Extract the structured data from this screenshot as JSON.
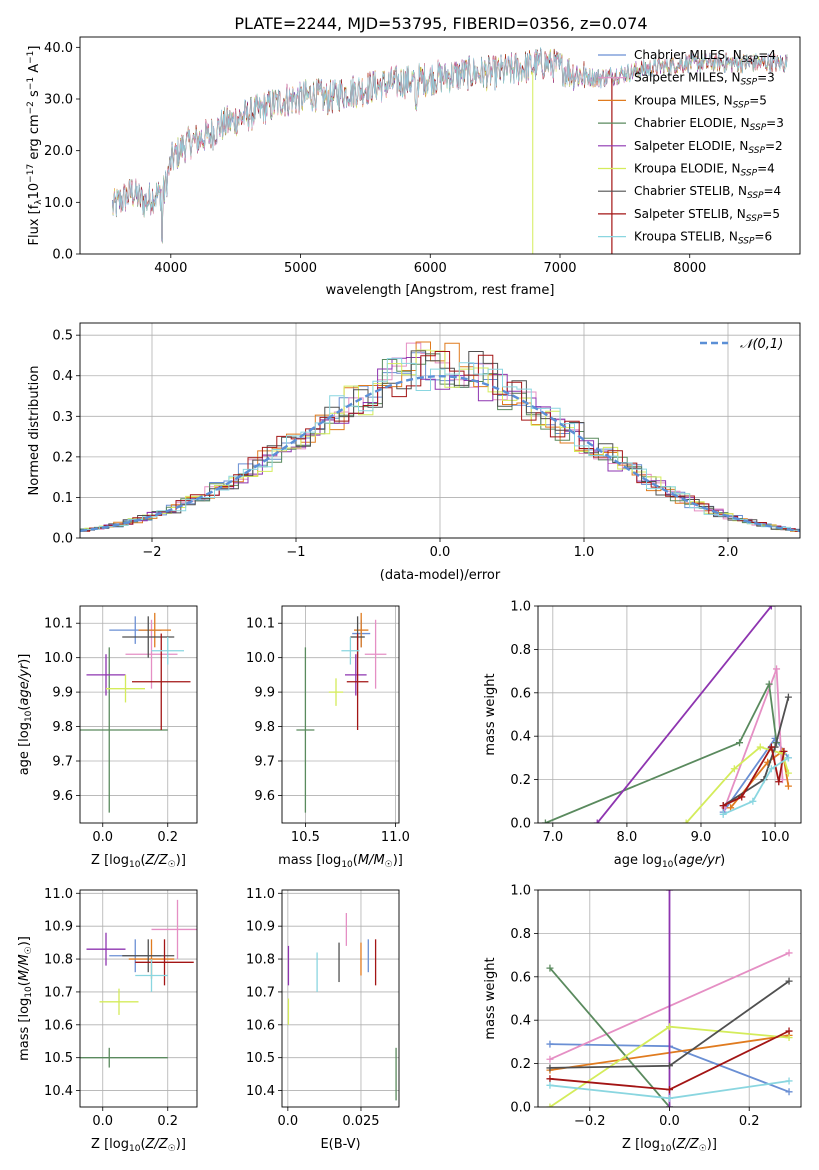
{
  "figure": {
    "title": "PLATE=2244, MJD=53795, FIBERID=0356, z=0.074"
  },
  "series_colors": [
    "#6a8fd4",
    "#e58fc4",
    "#e07b1f",
    "#5a8a5e",
    "#8e35b0",
    "#d4ec5b",
    "#505050",
    "#a31515",
    "#8ad6e0"
  ],
  "chart_data": [
    {
      "id": "spectrum",
      "type": "line",
      "xlabel": "wavelength [Angstrom, rest frame]",
      "ylabel": "Flux [f_λ 10^-17 erg cm^-2 s^-1 A^-1]",
      "xlim": [
        3300,
        8850
      ],
      "ylim": [
        0,
        42
      ],
      "xticks": [
        4000,
        5000,
        6000,
        7000,
        8000
      ],
      "yticks": [
        0,
        10,
        20,
        30,
        40
      ],
      "grid": false,
      "legend_position": "top-right",
      "legend": [
        {
          "base": "Chabrier MILES, N",
          "sub": "SSP",
          "tail": "=4"
        },
        {
          "base": "Salpeter MILES, N",
          "sub": "SSP",
          "tail": "=3"
        },
        {
          "base": "Kroupa MILES, N",
          "sub": "SSP",
          "tail": "=5"
        },
        {
          "base": "Chabrier ELODIE, N",
          "sub": "SSP",
          "tail": "=3"
        },
        {
          "base": "Salpeter ELODIE, N",
          "sub": "SSP",
          "tail": "=2"
        },
        {
          "base": "Kroupa ELODIE, N",
          "sub": "SSP",
          "tail": "=4"
        },
        {
          "base": "Chabrier STELIB, N",
          "sub": "SSP",
          "tail": "=4"
        },
        {
          "base": "Salpeter STELIB, N",
          "sub": "SSP",
          "tail": "=5"
        },
        {
          "base": "Kroupa STELIB, N",
          "sub": "SSP",
          "tail": "=6"
        }
      ],
      "continuum": {
        "x": [
          3550,
          3650,
          3700,
          3800,
          3850,
          3950,
          4000,
          4100,
          4200,
          4300,
          4400,
          4500,
          4600,
          4700,
          4800,
          4900,
          5000,
          5100,
          5200,
          5300,
          5500,
          5700,
          6000,
          6300,
          6500,
          6700,
          6900,
          7000,
          7100,
          7300,
          7500,
          7700,
          8000,
          8300,
          8500,
          8700
        ],
        "y": [
          9,
          11,
          12,
          10,
          11,
          12,
          18,
          21,
          22,
          23,
          25,
          26,
          27,
          28,
          29,
          30,
          30,
          31,
          30,
          31,
          32,
          33,
          34,
          35,
          35,
          36,
          37,
          36,
          35,
          34,
          35,
          36,
          37,
          37,
          37,
          37
        ]
      },
      "features": [
        {
          "x": 3933,
          "y": 2
        },
        {
          "x": 5890,
          "y": 27
        },
        {
          "x": 6790,
          "y": 0
        },
        {
          "x": 7400,
          "y": 0
        }
      ]
    },
    {
      "id": "residual_hist",
      "type": "bar",
      "xlabel": "(data-model)/error",
      "ylabel": "Normed distribution",
      "xlim": [
        -2.5,
        2.5
      ],
      "ylim": [
        0,
        0.53
      ],
      "xticks": [
        -2,
        -1,
        0,
        1,
        2
      ],
      "yticks": [
        0.0,
        0.1,
        0.2,
        0.3,
        0.4,
        0.5
      ],
      "grid": true,
      "legend_position": "top-right",
      "legend": [
        {
          "label": "𝒩(0,1)"
        }
      ]
    },
    {
      "id": "z_age",
      "type": "scatter",
      "xlabel": "Z [log10(Z/Z☉)]",
      "ylabel": "age [log10(age/yr)]",
      "xlim": [
        -0.07,
        0.29
      ],
      "ylim": [
        9.52,
        10.15
      ],
      "xticks": [
        0.0,
        0.2
      ],
      "yticks": [
        9.6,
        9.7,
        9.8,
        9.9,
        10.0,
        10.1
      ],
      "grid": true,
      "points": [
        {
          "x": 0.1,
          "y": 10.08,
          "xerr": 0.08,
          "yerr": 0.04
        },
        {
          "x": 0.15,
          "y": 10.01,
          "xerr": 0.08,
          "yerr": 0.1
        },
        {
          "x": 0.16,
          "y": 10.08,
          "xerr": 0.05,
          "yerr": 0.05
        },
        {
          "x": 0.02,
          "y": 9.79,
          "xerr": 0.18,
          "yerr": 0.24
        },
        {
          "x": 0.01,
          "y": 9.95,
          "xerr": 0.06,
          "yerr": 0.06
        },
        {
          "x": 0.07,
          "y": 9.91,
          "xerr": 0.06,
          "yerr": 0.04
        },
        {
          "x": 0.14,
          "y": 10.06,
          "xerr": 0.08,
          "yerr": 0.06
        },
        {
          "x": 0.18,
          "y": 9.93,
          "xerr": 0.09,
          "yerr": 0.14
        },
        {
          "x": 0.2,
          "y": 10.02,
          "xerr": 0.05,
          "yerr": 0.04
        }
      ]
    },
    {
      "id": "mass_age",
      "type": "scatter",
      "xlabel": "mass [log10(M/M☉)]",
      "ylabel": "",
      "xlim": [
        10.37,
        11.02
      ],
      "ylim": [
        9.52,
        10.15
      ],
      "xticks": [
        10.5,
        11.0
      ],
      "yticks": [
        9.6,
        9.7,
        9.8,
        9.9,
        10.0,
        10.1
      ],
      "grid": true,
      "points": [
        {
          "x": 10.81,
          "y": 10.07,
          "xerr": 0.05,
          "yerr": 0.04
        },
        {
          "x": 10.89,
          "y": 10.01,
          "xerr": 0.06,
          "yerr": 0.1
        },
        {
          "x": 10.81,
          "y": 10.08,
          "xerr": 0.04,
          "yerr": 0.05
        },
        {
          "x": 10.5,
          "y": 9.79,
          "xerr": 0.05,
          "yerr": 0.24
        },
        {
          "x": 10.78,
          "y": 9.95,
          "xerr": 0.06,
          "yerr": 0.06
        },
        {
          "x": 10.67,
          "y": 9.9,
          "xerr": 0.04,
          "yerr": 0.04
        },
        {
          "x": 10.79,
          "y": 10.06,
          "xerr": 0.04,
          "yerr": 0.06
        },
        {
          "x": 10.79,
          "y": 9.93,
          "xerr": 0.06,
          "yerr": 0.14
        },
        {
          "x": 10.75,
          "y": 10.02,
          "xerr": 0.05,
          "yerr": 0.04
        }
      ]
    },
    {
      "id": "age_weight",
      "type": "line",
      "xlabel": "age log10(age/yr)",
      "ylabel": "mass weight",
      "xlim": [
        6.8,
        10.35
      ],
      "ylim": [
        0,
        1.0
      ],
      "xticks": [
        7,
        8,
        9,
        10
      ],
      "yticks": [
        0.0,
        0.2,
        0.4,
        0.6,
        0.8,
        1.0
      ],
      "grid": true,
      "series": [
        {
          "x": [
            9.3,
            10.0,
            10.18
          ],
          "y": [
            0.05,
            0.39,
            0.3
          ]
        },
        {
          "x": [
            9.32,
            10.02,
            10.1
          ],
          "y": [
            0.07,
            0.71,
            0.2
          ]
        },
        {
          "x": [
            9.4,
            9.9,
            10.1,
            10.18
          ],
          "y": [
            0.07,
            0.28,
            0.33,
            0.17
          ]
        },
        {
          "x": [
            6.9,
            9.52,
            9.92,
            10.02
          ],
          "y": [
            0.0,
            0.37,
            0.64,
            0.37
          ]
        },
        {
          "x": [
            7.6,
            9.95
          ],
          "y": [
            0.0,
            1.0
          ]
        },
        {
          "x": [
            8.8,
            9.45,
            9.8,
            10.1,
            10.18
          ],
          "y": [
            0.0,
            0.25,
            0.35,
            0.32,
            0.23
          ]
        },
        {
          "x": [
            9.3,
            9.85,
            10.0,
            10.18
          ],
          "y": [
            0.08,
            0.2,
            0.35,
            0.58
          ]
        },
        {
          "x": [
            9.3,
            9.55,
            9.95,
            10.05,
            10.12
          ],
          "y": [
            0.08,
            0.12,
            0.35,
            0.19,
            0.33
          ]
        },
        {
          "x": [
            9.3,
            9.7,
            9.95,
            10.18
          ],
          "y": [
            0.04,
            0.1,
            0.25,
            0.3
          ]
        }
      ]
    },
    {
      "id": "z_mass",
      "type": "scatter",
      "xlabel": "Z [log10(Z/Z☉)]",
      "ylabel": "mass [log10(M/M☉)]",
      "xlim": [
        -0.07,
        0.29
      ],
      "ylim": [
        10.35,
        11.01
      ],
      "xticks": [
        0.0,
        0.2
      ],
      "yticks": [
        10.4,
        10.5,
        10.6,
        10.7,
        10.8,
        10.9,
        11.0
      ],
      "grid": true,
      "points": [
        {
          "x": 0.1,
          "y": 10.81,
          "xerr": 0.08,
          "yerr": 0.05
        },
        {
          "x": 0.23,
          "y": 10.89,
          "xerr": 0.08,
          "yerr": 0.09
        },
        {
          "x": 0.15,
          "y": 10.8,
          "xerr": 0.07,
          "yerr": 0.06
        },
        {
          "x": 0.02,
          "y": 10.5,
          "xerr": 0.18,
          "yerr": 0.03
        },
        {
          "x": 0.01,
          "y": 10.83,
          "xerr": 0.06,
          "yerr": 0.05
        },
        {
          "x": 0.05,
          "y": 10.67,
          "xerr": 0.06,
          "yerr": 0.04
        },
        {
          "x": 0.14,
          "y": 10.81,
          "xerr": 0.08,
          "yerr": 0.05
        },
        {
          "x": 0.19,
          "y": 10.79,
          "xerr": 0.09,
          "yerr": 0.07
        },
        {
          "x": 0.15,
          "y": 10.75,
          "xerr": 0.05,
          "yerr": 0.05
        }
      ]
    },
    {
      "id": "ebv_mass",
      "type": "scatter",
      "xlabel": "E(B-V)",
      "ylabel": "",
      "xlim": [
        -0.002,
        0.038
      ],
      "ylim": [
        10.35,
        11.01
      ],
      "xticks": [
        0.0,
        0.025
      ],
      "yticks": [
        10.4,
        10.5,
        10.6,
        10.7,
        10.8,
        10.9,
        11.0
      ],
      "grid": true,
      "points": [
        {
          "x": 0.0275,
          "y": 10.81,
          "xerr": 0,
          "yerr": 0.05
        },
        {
          "x": 0.02,
          "y": 10.89,
          "xerr": 0,
          "yerr": 0.05
        },
        {
          "x": 0.025,
          "y": 10.8,
          "xerr": 0,
          "yerr": 0.05
        },
        {
          "x": 0.037,
          "y": 10.45,
          "xerr": 0,
          "yerr": 0.08
        },
        {
          "x": 0.0002,
          "y": 10.78,
          "xerr": 0,
          "yerr": 0.06
        },
        {
          "x": 0.0002,
          "y": 10.64,
          "xerr": 0,
          "yerr": 0.04
        },
        {
          "x": 0.0175,
          "y": 10.79,
          "xerr": 0,
          "yerr": 0.06
        },
        {
          "x": 0.03,
          "y": 10.79,
          "xerr": 0,
          "yerr": 0.07
        },
        {
          "x": 0.01,
          "y": 10.76,
          "xerr": 0,
          "yerr": 0.06
        }
      ]
    },
    {
      "id": "z_weight",
      "type": "line",
      "xlabel": "Z [log10(Z/Z☉)]",
      "ylabel": "mass weight",
      "xlim": [
        -0.33,
        0.33
      ],
      "ylim": [
        0,
        1.0
      ],
      "xticks": [
        -0.2,
        0.0,
        0.2
      ],
      "yticks": [
        0.0,
        0.2,
        0.4,
        0.6,
        0.8,
        1.0
      ],
      "grid": true,
      "series": [
        {
          "x": [
            -0.3,
            0.0,
            0.3
          ],
          "y": [
            0.29,
            0.28,
            0.07
          ]
        },
        {
          "x": [
            -0.3,
            0.3
          ],
          "y": [
            0.22,
            0.71
          ]
        },
        {
          "x": [
            -0.3,
            0.3
          ],
          "y": [
            0.17,
            0.33
          ]
        },
        {
          "x": [
            -0.3,
            0.0
          ],
          "y": [
            0.64,
            0.0
          ]
        },
        {
          "x": [
            0.0,
            0.0
          ],
          "y": [
            0.0,
            1.0
          ]
        },
        {
          "x": [
            -0.3,
            0.0,
            0.3
          ],
          "y": [
            0.0,
            0.37,
            0.32
          ]
        },
        {
          "x": [
            -0.3,
            0.0,
            0.3
          ],
          "y": [
            0.18,
            0.19,
            0.58
          ]
        },
        {
          "x": [
            -0.3,
            0.0,
            0.3
          ],
          "y": [
            0.13,
            0.08,
            0.35
          ]
        },
        {
          "x": [
            -0.3,
            0.0,
            0.3
          ],
          "y": [
            0.1,
            0.04,
            0.12
          ]
        }
      ]
    }
  ]
}
